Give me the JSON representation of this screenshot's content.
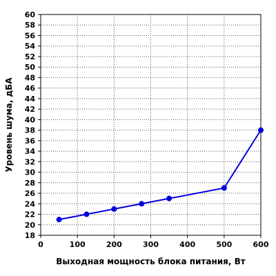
{
  "chart_data": {
    "type": "line",
    "xlabel": "Выходная мощность блока питания, Вт",
    "ylabel": "Уровень шума, дБА",
    "xlim": [
      0,
      600
    ],
    "ylim": [
      18,
      60
    ],
    "x_ticks": [
      0,
      100,
      200,
      300,
      400,
      500,
      600
    ],
    "y_ticks": [
      18,
      20,
      22,
      24,
      26,
      28,
      30,
      32,
      34,
      36,
      38,
      40,
      42,
      44,
      46,
      48,
      50,
      52,
      54,
      56,
      58,
      60
    ],
    "grid": true,
    "series": [
      {
        "x": [
          50,
          125,
          200,
          275,
          350,
          500,
          600
        ],
        "y": [
          21,
          22,
          23,
          24,
          25,
          27,
          38
        ],
        "color": "#0000dd"
      }
    ]
  }
}
